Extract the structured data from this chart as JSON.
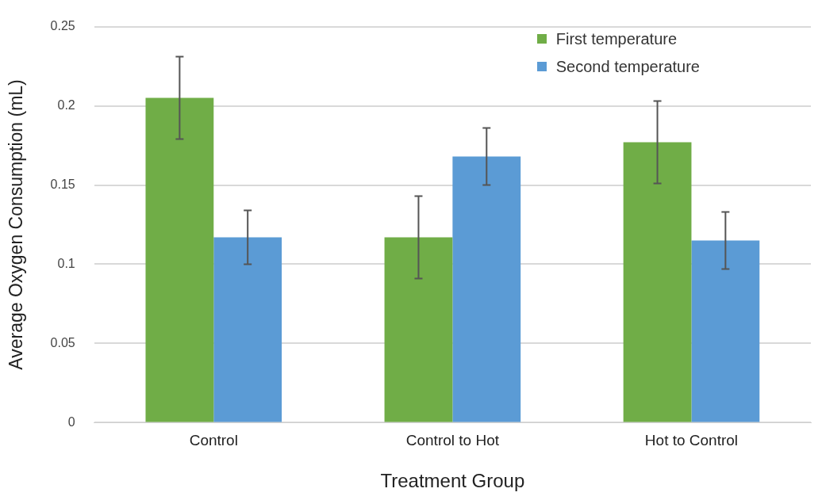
{
  "chart_data": {
    "type": "bar",
    "xlabel": "Treatment Group",
    "ylabel": "Average Oxygen Consumption (mL)",
    "categories": [
      "Control",
      "Control to Hot",
      "Hot to Control"
    ],
    "series": [
      {
        "name": "First temperature",
        "color": "#70ad47",
        "values": [
          0.205,
          0.117,
          0.177
        ],
        "errors": [
          0.026,
          0.026,
          0.026
        ]
      },
      {
        "name": "Second temperature",
        "color": "#5b9bd5",
        "values": [
          0.117,
          0.168,
          0.115
        ],
        "errors": [
          0.017,
          0.018,
          0.018
        ]
      }
    ],
    "ylim": [
      0,
      0.25
    ],
    "yticks": [
      0,
      0.05,
      0.1,
      0.15,
      0.2,
      0.25
    ],
    "grid": "y",
    "legend": "top right"
  }
}
